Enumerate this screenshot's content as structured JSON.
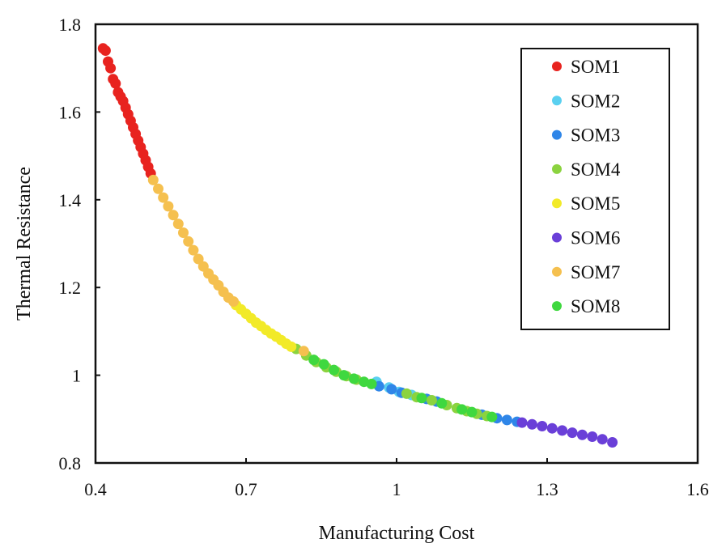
{
  "chart_data": {
    "type": "scatter",
    "title": "",
    "xlabel": "Manufacturing Cost",
    "ylabel": "Thermal Resistance",
    "xlim": [
      0.4,
      1.6
    ],
    "ylim": [
      0.8,
      1.8
    ],
    "xticks": [
      0.4,
      0.7,
      1.0,
      1.3,
      1.6
    ],
    "xtick_labels": [
      "0.4",
      "0.7",
      "1",
      "1.3",
      "1.6"
    ],
    "yticks": [
      0.8,
      1.0,
      1.2,
      1.4,
      1.6,
      1.8
    ],
    "ytick_labels": [
      "0.8",
      "1",
      "1.2",
      "1.4",
      "1.6",
      "1.8"
    ],
    "grid": false,
    "legend_position": "top-right",
    "series": [
      {
        "name": "SOM1",
        "color": "#e8231f",
        "points": [
          [
            0.415,
            1.745
          ],
          [
            0.42,
            1.74
          ],
          [
            0.425,
            1.715
          ],
          [
            0.43,
            1.7
          ],
          [
            0.435,
            1.675
          ],
          [
            0.44,
            1.665
          ],
          [
            0.445,
            1.645
          ],
          [
            0.45,
            1.635
          ],
          [
            0.455,
            1.625
          ],
          [
            0.46,
            1.61
          ],
          [
            0.465,
            1.595
          ],
          [
            0.47,
            1.58
          ],
          [
            0.475,
            1.565
          ],
          [
            0.48,
            1.55
          ],
          [
            0.485,
            1.535
          ],
          [
            0.49,
            1.52
          ],
          [
            0.495,
            1.505
          ],
          [
            0.5,
            1.49
          ],
          [
            0.505,
            1.475
          ],
          [
            0.51,
            1.46
          ]
        ]
      },
      {
        "name": "SOM2",
        "color": "#5ad0f0",
        "points": [
          [
            0.96,
            0.985
          ],
          [
            0.985,
            0.972
          ],
          [
            1.005,
            0.962
          ],
          [
            1.03,
            0.955
          ]
        ]
      },
      {
        "name": "SOM3",
        "color": "#2f86e8",
        "points": [
          [
            0.965,
            0.975
          ],
          [
            0.99,
            0.968
          ],
          [
            1.01,
            0.96
          ],
          [
            1.06,
            0.946
          ],
          [
            1.08,
            0.94
          ],
          [
            1.17,
            0.91
          ],
          [
            1.2,
            0.902
          ],
          [
            1.22,
            0.898
          ],
          [
            1.24,
            0.894
          ]
        ]
      },
      {
        "name": "SOM4",
        "color": "#8bd33f",
        "points": [
          [
            0.8,
            1.06
          ],
          [
            0.82,
            1.045
          ],
          [
            0.84,
            1.03
          ],
          [
            0.86,
            1.018
          ],
          [
            0.88,
            1.008
          ],
          [
            0.9,
            0.998
          ],
          [
            0.92,
            0.99
          ],
          [
            1.02,
            0.958
          ],
          [
            1.04,
            0.95
          ],
          [
            1.07,
            0.943
          ],
          [
            1.1,
            0.932
          ],
          [
            1.12,
            0.925
          ],
          [
            1.14,
            0.918
          ],
          [
            1.16,
            0.912
          ],
          [
            1.18,
            0.907
          ]
        ]
      },
      {
        "name": "SOM5",
        "color": "#f2ea28",
        "points": [
          [
            0.68,
            1.16
          ],
          [
            0.69,
            1.15
          ],
          [
            0.7,
            1.14
          ],
          [
            0.71,
            1.13
          ],
          [
            0.72,
            1.12
          ],
          [
            0.73,
            1.112
          ],
          [
            0.74,
            1.103
          ],
          [
            0.75,
            1.095
          ],
          [
            0.76,
            1.088
          ],
          [
            0.77,
            1.08
          ],
          [
            0.78,
            1.072
          ],
          [
            0.79,
            1.065
          ]
        ]
      },
      {
        "name": "SOM6",
        "color": "#6a3fd8",
        "points": [
          [
            1.25,
            0.892
          ],
          [
            1.27,
            0.888
          ],
          [
            1.29,
            0.884
          ],
          [
            1.31,
            0.879
          ],
          [
            1.33,
            0.874
          ],
          [
            1.35,
            0.869
          ],
          [
            1.37,
            0.864
          ],
          [
            1.39,
            0.86
          ],
          [
            1.41,
            0.854
          ],
          [
            1.43,
            0.847
          ]
        ]
      },
      {
        "name": "SOM7",
        "color": "#f5c04f",
        "points": [
          [
            0.515,
            1.445
          ],
          [
            0.525,
            1.425
          ],
          [
            0.535,
            1.405
          ],
          [
            0.545,
            1.385
          ],
          [
            0.555,
            1.365
          ],
          [
            0.565,
            1.345
          ],
          [
            0.575,
            1.325
          ],
          [
            0.585,
            1.305
          ],
          [
            0.595,
            1.285
          ],
          [
            0.605,
            1.265
          ],
          [
            0.615,
            1.248
          ],
          [
            0.625,
            1.232
          ],
          [
            0.635,
            1.218
          ],
          [
            0.645,
            1.205
          ],
          [
            0.655,
            1.19
          ],
          [
            0.665,
            1.177
          ],
          [
            0.675,
            1.168
          ],
          [
            0.815,
            1.055
          ]
        ]
      },
      {
        "name": "SOM8",
        "color": "#3fd83f",
        "points": [
          [
            0.835,
            1.035
          ],
          [
            0.855,
            1.025
          ],
          [
            0.875,
            1.012
          ],
          [
            0.895,
            1.0
          ],
          [
            0.915,
            0.992
          ],
          [
            0.935,
            0.985
          ],
          [
            0.95,
            0.98
          ],
          [
            1.05,
            0.948
          ],
          [
            1.09,
            0.936
          ],
          [
            1.13,
            0.922
          ],
          [
            1.15,
            0.916
          ],
          [
            1.19,
            0.905
          ]
        ]
      }
    ]
  }
}
